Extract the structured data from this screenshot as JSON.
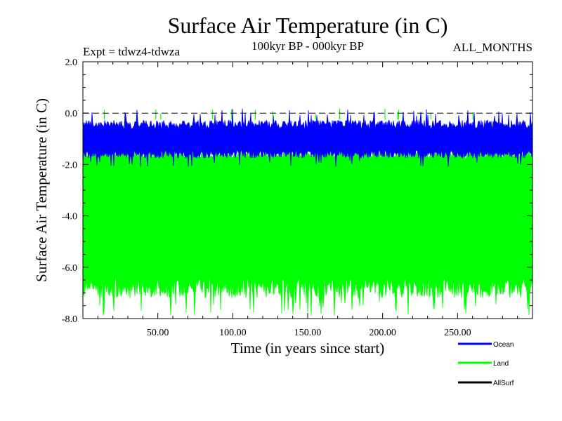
{
  "chart_data": {
    "type": "line",
    "title": "Surface Air Temperature (in C)",
    "subtitle": "100kyr BP - 000kyr BP",
    "top_left_label": "Expt = tdwz4-tdwza",
    "top_right_label": "ALL_MONTHS",
    "xlabel": "Time (in years since start)",
    "ylabel": "Surface Air Temperature (in C)",
    "xlim": [
      0,
      300
    ],
    "ylim": [
      -8.0,
      2.0
    ],
    "x_ticks": [
      50,
      100,
      150,
      200,
      250
    ],
    "x_tick_labels": [
      "50.00",
      "100.00",
      "150.00",
      "200.00",
      "250.00"
    ],
    "y_ticks": [
      2.0,
      0.0,
      -2.0,
      -4.0,
      -6.0,
      -8.0
    ],
    "y_tick_labels": [
      "2.0",
      "0.0",
      "-2.0",
      "-4.0",
      "-6.0",
      "-8.0"
    ],
    "reference_line": {
      "y": 0.0,
      "style": "dashed",
      "color": "#000000"
    },
    "grid": false,
    "legend_position": "bottom-right",
    "series": [
      {
        "name": "Ocean",
        "color": "#0000ff",
        "band_top_mean": -0.45,
        "band_top_max": 0.2,
        "band_bottom_mean": -1.6,
        "band_bottom_min": -2.1
      },
      {
        "name": "Land",
        "color": "#00ff00",
        "band_top_mean": -1.6,
        "band_top_max": 0.2,
        "band_bottom_mean": -6.8,
        "band_bottom_min": -7.9
      },
      {
        "name": "AllSurf",
        "color": "#000000"
      }
    ]
  }
}
